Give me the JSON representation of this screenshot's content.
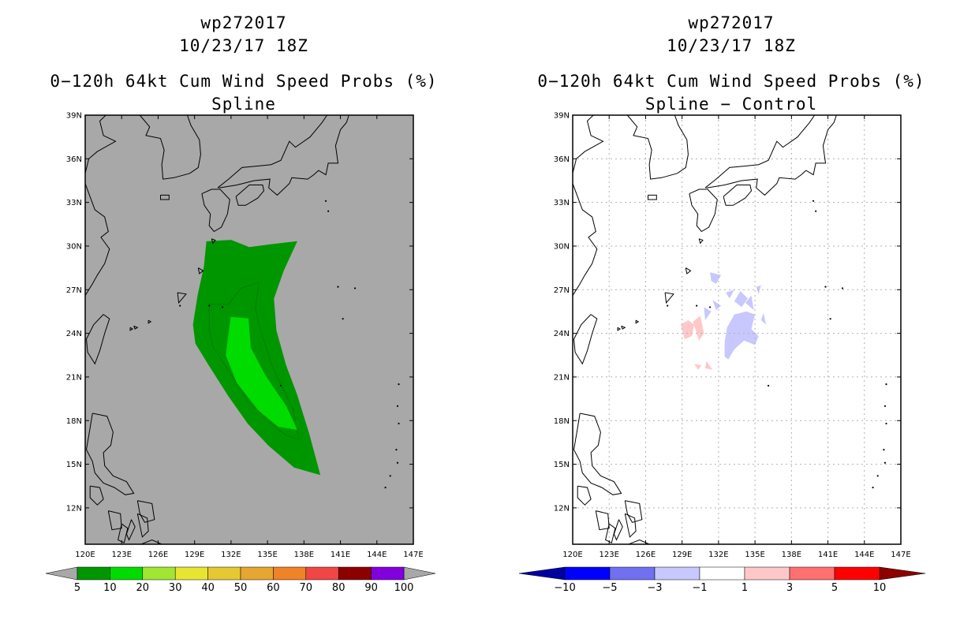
{
  "left_panel": {
    "storm_id": "wp272017",
    "datetime": "10/23/17 18Z",
    "product": "0−120h 64kt Cum Wind Speed Probs (%)",
    "subtitle": "Spline",
    "background": "#a8a8a8"
  },
  "right_panel": {
    "storm_id": "wp272017",
    "datetime": "10/23/17 18Z",
    "product": "0−120h 64kt Cum Wind Speed Probs (%)",
    "subtitle": "Spline − Control",
    "background": "#ffffff"
  },
  "axes": {
    "lat_labels": [
      "39N",
      "36N",
      "33N",
      "30N",
      "27N",
      "24N",
      "21N",
      "18N",
      "15N",
      "12N"
    ],
    "lat_values": [
      39,
      36,
      33,
      30,
      27,
      24,
      21,
      18,
      15,
      12
    ],
    "lon_labels": [
      "120E",
      "123E",
      "126E",
      "129E",
      "132E",
      "135E",
      "138E",
      "141E",
      "144E",
      "147E"
    ],
    "lon_values": [
      120,
      123,
      126,
      129,
      132,
      135,
      138,
      141,
      144,
      147
    ],
    "lat_range": [
      9.5,
      39
    ],
    "lon_range": [
      120,
      147
    ]
  },
  "left_colorbar": {
    "labels": [
      "5",
      "10",
      "20",
      "30",
      "40",
      "50",
      "60",
      "70",
      "80",
      "90",
      "100"
    ],
    "colors": [
      "#009600",
      "#00dc00",
      "#a0e632",
      "#e6e632",
      "#e6c832",
      "#e6a632",
      "#f08228",
      "#f04646",
      "#8c0000",
      "#8200dc"
    ],
    "arrow_color": "#a8a8a8"
  },
  "right_colorbar": {
    "labels": [
      "−10",
      "−5",
      "−3",
      "−1",
      "1",
      "3",
      "5",
      "10"
    ],
    "colors": [
      "#0000ff",
      "#7070f0",
      "#c8c8ff",
      "#ffffff",
      "#ffc8c8",
      "#ff7070",
      "#ff0000"
    ],
    "low_arrow_color": "#0000a0",
    "high_arrow_color": "#8c0000"
  }
}
